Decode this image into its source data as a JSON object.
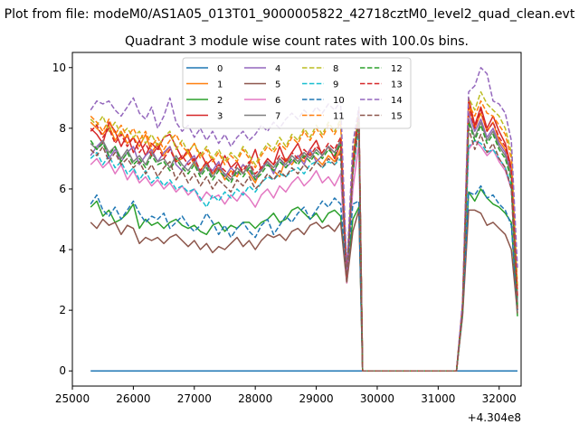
{
  "figure": {
    "suptitle": "Plot from file: modeM0/AS1A05_013T01_9000005822_42718cztM0_level2_quad_clean.evt",
    "offset_label": "+4.304e8"
  },
  "chart_data": {
    "type": "line",
    "title": "Quadrant 3 module wise count rates with 100.0s bins.",
    "xlabel": "",
    "ylabel": "",
    "x_offset": 430400000,
    "xlim": [
      25000,
      32360
    ],
    "ylim": [
      -0.5,
      10.5
    ],
    "x_ticks": [
      25000,
      26000,
      27000,
      28000,
      29000,
      30000,
      31000,
      32000
    ],
    "y_ticks": [
      0,
      2,
      4,
      6,
      8,
      10
    ],
    "grid": false,
    "legend_placement": "top-center",
    "legend_ncol": 4,
    "x_start": 25300,
    "x_step": 100,
    "gap_start_index": 45,
    "gap_end_index": 61,
    "series": [
      {
        "name": "0",
        "color": "#1f77b4",
        "dash": "solid",
        "values": [
          0,
          0,
          0,
          0,
          0,
          0,
          0,
          0,
          0,
          0,
          0,
          0,
          0,
          0,
          0,
          0,
          0,
          0,
          0,
          0,
          0,
          0,
          0,
          0,
          0,
          0,
          0,
          0,
          0,
          0,
          0,
          0,
          0,
          0,
          0,
          0,
          0,
          0,
          0,
          0,
          0,
          0,
          0,
          0,
          0,
          0,
          0,
          0,
          0,
          0,
          0,
          0,
          0,
          0,
          0,
          0,
          0,
          0,
          0,
          0,
          0,
          0,
          0,
          0,
          0,
          0,
          0,
          0,
          0,
          0,
          0
        ]
      },
      {
        "name": "1",
        "color": "#ff7f0e",
        "dash": "solid",
        "values": [
          8.2,
          8.0,
          7.8,
          8.1,
          7.6,
          7.9,
          7.5,
          7.7,
          7.4,
          7.8,
          7.2,
          7.5,
          7.1,
          7.4,
          6.9,
          7.0,
          7.2,
          6.8,
          6.6,
          6.9,
          6.5,
          6.7,
          6.3,
          6.6,
          6.4,
          6.8,
          6.5,
          6.2,
          6.7,
          6.9,
          6.6,
          6.4,
          7.0,
          6.8,
          7.1,
          6.9,
          7.2,
          7.0,
          6.8,
          7.1,
          6.9,
          7.3,
          3.2,
          6.5,
          8.3,
          0,
          0,
          0,
          0,
          0,
          0,
          0,
          0,
          0,
          0,
          0,
          0,
          0,
          0,
          0,
          0,
          2.0,
          8.8,
          8.0,
          8.5,
          7.9,
          8.2,
          7.6,
          7.3,
          6.5,
          2.1
        ]
      },
      {
        "name": "2",
        "color": "#2ca02c",
        "dash": "solid",
        "values": [
          5.4,
          5.6,
          5.1,
          5.3,
          4.9,
          5.0,
          5.2,
          5.5,
          4.7,
          5.0,
          4.8,
          4.9,
          4.7,
          4.9,
          5.0,
          4.8,
          4.7,
          4.8,
          4.6,
          4.5,
          4.8,
          4.9,
          4.6,
          4.8,
          4.7,
          4.9,
          4.9,
          4.7,
          4.9,
          5.0,
          5.2,
          4.9,
          5.0,
          5.3,
          5.4,
          5.2,
          5.0,
          5.2,
          4.9,
          5.2,
          5.3,
          5.1,
          3.0,
          5.0,
          5.4,
          0,
          0,
          0,
          0,
          0,
          0,
          0,
          0,
          0,
          0,
          0,
          0,
          0,
          0,
          0,
          0,
          1.9,
          5.9,
          5.6,
          6.0,
          5.7,
          5.5,
          5.4,
          5.2,
          4.9,
          1.8
        ]
      },
      {
        "name": "3",
        "color": "#d62728",
        "dash": "solid",
        "values": [
          8.0,
          7.8,
          7.5,
          8.2,
          7.9,
          7.4,
          7.8,
          7.2,
          7.6,
          7.1,
          7.5,
          7.3,
          7.7,
          7.8,
          7.4,
          7.0,
          7.3,
          6.9,
          7.2,
          6.8,
          7.0,
          6.6,
          7.1,
          6.7,
          6.9,
          6.5,
          6.8,
          7.3,
          6.6,
          7.0,
          6.8,
          7.4,
          6.9,
          7.2,
          7.5,
          7.0,
          7.3,
          7.6,
          7.1,
          7.4,
          7.0,
          7.5,
          3.0,
          6.8,
          8.4,
          0,
          0,
          0,
          0,
          0,
          0,
          0,
          0,
          0,
          0,
          0,
          0,
          0,
          0,
          0,
          0,
          2.2,
          9.0,
          8.1,
          8.7,
          8.0,
          8.4,
          7.9,
          7.5,
          6.7,
          2.5
        ]
      },
      {
        "name": "4",
        "color": "#9467bd",
        "dash": "solid",
        "values": [
          7.1,
          7.4,
          7.6,
          7.0,
          7.3,
          6.9,
          7.2,
          7.4,
          6.8,
          7.1,
          7.3,
          6.9,
          7.2,
          7.4,
          6.8,
          6.6,
          6.9,
          7.1,
          6.5,
          6.8,
          6.6,
          6.9,
          6.4,
          6.7,
          6.5,
          6.8,
          6.6,
          6.3,
          6.7,
          6.9,
          6.5,
          7.0,
          6.7,
          6.9,
          7.1,
          6.8,
          7.3,
          6.9,
          7.1,
          7.4,
          7.2,
          7.5,
          3.1,
          6.9,
          8.6,
          0,
          0,
          0,
          0,
          0,
          0,
          0,
          0,
          0,
          0,
          0,
          0,
          0,
          0,
          0,
          0,
          2.1,
          8.5,
          7.9,
          8.3,
          7.7,
          8.0,
          7.5,
          7.2,
          6.6,
          2.4
        ]
      },
      {
        "name": "5",
        "color": "#8c564b",
        "dash": "solid",
        "values": [
          4.9,
          4.7,
          5.0,
          4.8,
          4.9,
          4.5,
          4.8,
          4.7,
          4.2,
          4.4,
          4.3,
          4.4,
          4.2,
          4.4,
          4.5,
          4.3,
          4.1,
          4.3,
          4.0,
          4.2,
          3.9,
          4.1,
          4.0,
          4.2,
          4.4,
          4.1,
          4.3,
          4.0,
          4.3,
          4.5,
          4.4,
          4.5,
          4.3,
          4.6,
          4.7,
          4.5,
          4.8,
          4.9,
          4.7,
          4.8,
          4.6,
          4.9,
          2.9,
          4.6,
          5.3,
          0,
          0,
          0,
          0,
          0,
          0,
          0,
          0,
          0,
          0,
          0,
          0,
          0,
          0,
          0,
          0,
          1.8,
          5.3,
          5.3,
          5.2,
          4.8,
          4.9,
          4.7,
          4.5,
          4.0,
          1.9
        ]
      },
      {
        "name": "6",
        "color": "#e377c2",
        "dash": "solid",
        "values": [
          6.8,
          7.0,
          6.7,
          6.9,
          6.5,
          6.8,
          6.3,
          6.6,
          6.2,
          6.4,
          6.1,
          6.3,
          6.0,
          6.2,
          5.9,
          6.1,
          5.8,
          6.0,
          5.6,
          5.9,
          5.7,
          5.8,
          5.5,
          5.8,
          5.6,
          5.9,
          5.7,
          5.4,
          5.8,
          6.0,
          5.7,
          6.1,
          5.9,
          6.2,
          6.4,
          6.1,
          6.3,
          6.6,
          6.2,
          6.4,
          6.1,
          6.5,
          2.9,
          6.0,
          7.5,
          0,
          0,
          0,
          0,
          0,
          0,
          0,
          0,
          0,
          0,
          0,
          0,
          0,
          0,
          0,
          0,
          1.9,
          7.3,
          7.6,
          7.4,
          7.1,
          7.3,
          6.9,
          6.6,
          6.0,
          2.0
        ]
      },
      {
        "name": "7",
        "color": "#7f7f7f",
        "dash": "solid",
        "values": [
          7.5,
          7.3,
          7.6,
          7.2,
          7.4,
          7.0,
          7.3,
          6.9,
          7.1,
          6.8,
          7.2,
          6.9,
          7.0,
          6.7,
          7.1,
          6.8,
          6.6,
          6.9,
          6.5,
          6.8,
          6.4,
          6.7,
          6.5,
          6.3,
          6.7,
          6.5,
          6.8,
          6.4,
          6.6,
          6.9,
          6.7,
          7.0,
          6.8,
          7.1,
          6.9,
          7.2,
          7.0,
          7.3,
          7.1,
          7.4,
          7.2,
          7.6,
          3.0,
          6.9,
          8.5,
          0,
          0,
          0,
          0,
          0,
          0,
          0,
          0,
          0,
          0,
          0,
          0,
          0,
          0,
          0,
          0,
          2.0,
          8.3,
          7.7,
          8.2,
          7.6,
          7.9,
          7.4,
          7.1,
          6.4,
          2.2
        ]
      },
      {
        "name": "8",
        "color": "#bcbd22",
        "dash": "dashed",
        "values": [
          8.3,
          8.1,
          8.4,
          7.9,
          8.2,
          7.8,
          8.0,
          7.7,
          7.9,
          7.5,
          7.8,
          7.4,
          7.7,
          7.9,
          7.3,
          7.6,
          7.2,
          7.5,
          7.1,
          7.4,
          7.0,
          7.3,
          6.9,
          7.2,
          7.0,
          7.4,
          7.1,
          6.8,
          7.2,
          7.5,
          7.3,
          7.7,
          7.4,
          7.8,
          7.6,
          8.0,
          7.7,
          8.1,
          7.8,
          8.2,
          7.9,
          8.3,
          3.2,
          7.1,
          8.6,
          0,
          0,
          0,
          0,
          0,
          0,
          0,
          0,
          0,
          0,
          0,
          0,
          0,
          0,
          0,
          0,
          2.2,
          9.0,
          8.6,
          9.2,
          8.8,
          8.6,
          8.4,
          8.0,
          7.2,
          2.8
        ]
      },
      {
        "name": "9",
        "color": "#17becf",
        "dash": "dashed",
        "values": [
          7.0,
          7.2,
          6.8,
          7.1,
          6.7,
          6.9,
          6.5,
          6.7,
          6.3,
          6.6,
          6.2,
          6.4,
          6.1,
          6.3,
          6.0,
          6.1,
          5.9,
          6.0,
          5.7,
          5.4,
          5.8,
          5.6,
          5.9,
          5.7,
          6.0,
          5.8,
          6.1,
          5.9,
          6.2,
          6.4,
          6.3,
          6.5,
          6.4,
          6.6,
          6.7,
          6.5,
          6.8,
          6.9,
          6.7,
          6.9,
          6.8,
          7.0,
          3.0,
          6.5,
          8.0,
          0,
          0,
          0,
          0,
          0,
          0,
          0,
          0,
          0,
          0,
          0,
          0,
          0,
          0,
          0,
          0,
          1.9,
          7.4,
          7.6,
          7.5,
          7.2,
          7.3,
          7.0,
          6.7,
          6.1,
          2.3
        ]
      },
      {
        "name": "10",
        "color": "#1f77b4",
        "dash": "dashed",
        "values": [
          5.5,
          5.8,
          5.3,
          5.1,
          5.4,
          5.0,
          5.3,
          5.6,
          5.2,
          4.9,
          5.1,
          5.0,
          5.2,
          4.7,
          4.9,
          5.1,
          4.8,
          4.6,
          4.8,
          5.2,
          4.9,
          4.5,
          4.8,
          4.4,
          4.7,
          4.9,
          4.6,
          4.4,
          4.8,
          5.0,
          4.5,
          4.8,
          5.1,
          4.9,
          5.2,
          5.4,
          5.0,
          5.3,
          5.6,
          5.4,
          5.7,
          5.5,
          3.1,
          5.5,
          5.6,
          0,
          0,
          0,
          0,
          0,
          0,
          0,
          0,
          0,
          0,
          0,
          0,
          0,
          0,
          0,
          0,
          2.0,
          5.9,
          5.8,
          6.1,
          5.7,
          5.8,
          5.5,
          5.3,
          4.8,
          2.0
        ]
      },
      {
        "name": "11",
        "color": "#ff7f0e",
        "dash": "dashed",
        "values": [
          8.4,
          8.2,
          7.9,
          8.3,
          7.8,
          8.1,
          7.7,
          8.0,
          7.6,
          7.9,
          7.4,
          7.7,
          7.3,
          7.6,
          7.8,
          7.4,
          7.2,
          7.5,
          7.0,
          7.3,
          6.9,
          7.2,
          6.8,
          7.1,
          6.9,
          7.3,
          7.0,
          6.7,
          7.1,
          7.4,
          7.2,
          7.5,
          7.3,
          7.7,
          7.5,
          7.9,
          7.6,
          8.0,
          7.7,
          8.1,
          7.8,
          8.2,
          3.1,
          7.0,
          8.5,
          0,
          0,
          0,
          0,
          0,
          0,
          0,
          0,
          0,
          0,
          0,
          0,
          0,
          0,
          0,
          0,
          2.1,
          8.8,
          8.4,
          8.9,
          8.5,
          8.4,
          8.1,
          7.8,
          7.0,
          2.7
        ]
      },
      {
        "name": "12",
        "color": "#2ca02c",
        "dash": "dashed",
        "values": [
          7.6,
          7.3,
          7.5,
          7.1,
          7.4,
          6.9,
          7.2,
          6.8,
          7.0,
          6.7,
          7.1,
          6.8,
          6.9,
          6.6,
          7.0,
          6.7,
          6.5,
          6.8,
          6.4,
          6.7,
          6.3,
          6.6,
          6.4,
          6.2,
          6.6,
          6.4,
          6.7,
          6.3,
          6.5,
          6.8,
          6.6,
          6.9,
          6.7,
          7.0,
          6.8,
          7.1,
          6.9,
          7.2,
          7.0,
          7.3,
          7.1,
          7.5,
          3.0,
          6.8,
          8.4,
          0,
          0,
          0,
          0,
          0,
          0,
          0,
          0,
          0,
          0,
          0,
          0,
          0,
          0,
          0,
          0,
          2.0,
          8.2,
          7.6,
          8.1,
          7.5,
          7.8,
          7.3,
          7.0,
          6.3,
          2.1
        ]
      },
      {
        "name": "13",
        "color": "#d62728",
        "dash": "dashed",
        "values": [
          7.9,
          8.1,
          7.7,
          8.0,
          7.5,
          7.8,
          7.4,
          7.7,
          7.2,
          7.5,
          7.1,
          7.4,
          7.0,
          7.3,
          6.9,
          7.1,
          6.8,
          7.0,
          6.6,
          6.9,
          6.5,
          6.8,
          6.6,
          6.4,
          6.8,
          6.6,
          6.9,
          6.5,
          6.7,
          7.0,
          6.8,
          7.1,
          6.9,
          7.2,
          7.0,
          7.3,
          7.1,
          7.4,
          7.2,
          7.5,
          7.3,
          7.7,
          3.1,
          6.9,
          8.6,
          0,
          0,
          0,
          0,
          0,
          0,
          0,
          0,
          0,
          0,
          0,
          0,
          0,
          0,
          0,
          0,
          2.1,
          8.7,
          8.0,
          8.6,
          7.9,
          8.2,
          7.7,
          7.4,
          6.6,
          2.4
        ]
      },
      {
        "name": "14",
        "color": "#9467bd",
        "dash": "dashed",
        "values": [
          8.6,
          8.9,
          8.8,
          8.9,
          8.6,
          8.4,
          8.7,
          9.0,
          8.5,
          8.3,
          8.7,
          8.0,
          8.4,
          9.0,
          8.2,
          7.9,
          8.1,
          7.7,
          8.0,
          7.6,
          7.9,
          7.5,
          7.8,
          7.4,
          7.7,
          7.9,
          7.6,
          7.8,
          8.1,
          7.9,
          8.2,
          8.0,
          8.3,
          8.5,
          8.3,
          8.6,
          8.4,
          8.7,
          8.5,
          8.8,
          8.6,
          8.9,
          3.3,
          7.5,
          8.7,
          0,
          0,
          0,
          0,
          0,
          0,
          0,
          0,
          0,
          0,
          0,
          0,
          0,
          0,
          0,
          0,
          2.3,
          9.2,
          9.4,
          10.0,
          9.8,
          8.9,
          8.8,
          8.5,
          7.6,
          3.4
        ]
      },
      {
        "name": "15",
        "color": "#8c564b",
        "dash": "dashed",
        "values": [
          7.3,
          7.1,
          7.4,
          6.9,
          7.2,
          6.8,
          7.0,
          6.7,
          6.9,
          6.5,
          6.8,
          6.4,
          6.7,
          6.9,
          6.3,
          6.6,
          6.2,
          6.5,
          6.1,
          6.4,
          6.0,
          6.3,
          6.1,
          5.9,
          6.3,
          6.1,
          6.4,
          6.0,
          6.2,
          6.5,
          6.3,
          6.6,
          6.4,
          6.7,
          6.5,
          6.8,
          6.6,
          6.9,
          6.7,
          7.0,
          6.8,
          7.2,
          2.9,
          6.5,
          8.2,
          0,
          0,
          0,
          0,
          0,
          0,
          0,
          0,
          0,
          0,
          0,
          0,
          0,
          0,
          0,
          0,
          1.9,
          8.0,
          7.3,
          7.8,
          7.2,
          7.5,
          7.0,
          6.7,
          6.0,
          2.0
        ]
      }
    ]
  }
}
